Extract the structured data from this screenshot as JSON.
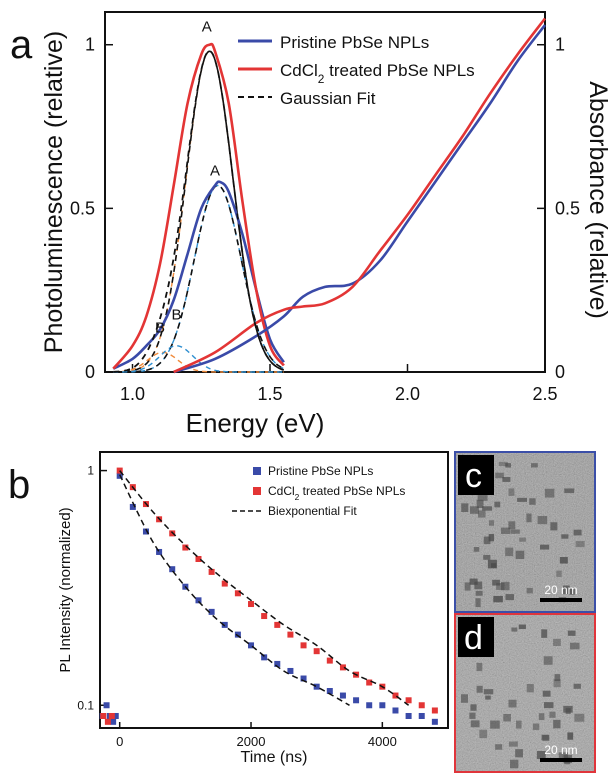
{
  "figure": {
    "panels": {
      "a": "a",
      "b": "b",
      "c": "c",
      "d": "d"
    },
    "tem_images": [
      {
        "panel": "c",
        "scale_bar": "20 nm",
        "border_color": "#3b4fa8"
      },
      {
        "panel": "d",
        "scale_bar": "20 nm",
        "border_color": "#e0353b"
      }
    ]
  },
  "colors": {
    "pristine": "#3a4aa8",
    "treated": "#e33535",
    "pristine_fit_components": "#2f8fd0",
    "treated_fit_components": "#f08a3a",
    "fit": "#111111"
  },
  "chart_data": [
    {
      "panel": "a",
      "type": "line",
      "xlabel": "Energy (eV)",
      "ylabel": "Photoluminescence (relative)",
      "y2label": "Absorbance (relative)",
      "xlim": [
        0.9,
        2.5
      ],
      "ylim": [
        0,
        1.1
      ],
      "xticks": [
        "1.0",
        "1.5",
        "2.0",
        "2.5"
      ],
      "yticks": [
        "0",
        "0.5",
        "1"
      ],
      "y2ticks": [
        "0",
        "0.5",
        "1"
      ],
      "legend_position": "top-right",
      "legend": [
        "Pristine PbSe NPLs",
        "CdCl2 treated PbSe NPLs",
        "Gaussian Fit"
      ],
      "peak_labels": [
        {
          "text": "A",
          "x": 1.27,
          "y": 1.04
        },
        {
          "text": "A",
          "x": 1.3,
          "y": 0.6
        },
        {
          "text": "B",
          "x": 1.1,
          "y": 0.12
        },
        {
          "text": "B",
          "x": 1.16,
          "y": 0.16
        }
      ],
      "series": [
        {
          "name": "Pristine PbSe NPLs",
          "kind": "photoluminescence",
          "x": [
            0.93,
            1.0,
            1.05,
            1.1,
            1.15,
            1.2,
            1.25,
            1.3,
            1.32,
            1.35,
            1.4,
            1.45,
            1.5,
            1.55
          ],
          "y": [
            0.01,
            0.04,
            0.08,
            0.13,
            0.22,
            0.36,
            0.5,
            0.57,
            0.58,
            0.55,
            0.42,
            0.25,
            0.1,
            0.03
          ]
        },
        {
          "name": "CdCl2 treated PbSe NPLs",
          "kind": "photoluminescence",
          "x": [
            0.93,
            1.0,
            1.05,
            1.1,
            1.15,
            1.2,
            1.25,
            1.28,
            1.3,
            1.35,
            1.4,
            1.45,
            1.5,
            1.55
          ],
          "y": [
            0.01,
            0.08,
            0.17,
            0.33,
            0.57,
            0.82,
            0.97,
            1.0,
            0.98,
            0.82,
            0.52,
            0.25,
            0.08,
            0.02
          ]
        },
        {
          "name": "Pristine PbSe NPLs",
          "kind": "absorbance",
          "x": [
            1.15,
            1.3,
            1.45,
            1.55,
            1.62,
            1.7,
            1.8,
            1.9,
            2.0,
            2.1,
            2.2,
            2.3,
            2.4,
            2.5
          ],
          "y": [
            0,
            0.04,
            0.11,
            0.17,
            0.23,
            0.26,
            0.27,
            0.34,
            0.46,
            0.58,
            0.7,
            0.82,
            0.95,
            1.06
          ]
        },
        {
          "name": "CdCl2 treated PbSe NPLs",
          "kind": "absorbance",
          "x": [
            1.15,
            1.3,
            1.45,
            1.55,
            1.62,
            1.7,
            1.8,
            1.9,
            2.0,
            2.1,
            2.2,
            2.3,
            2.4,
            2.5
          ],
          "y": [
            0,
            0.06,
            0.15,
            0.19,
            0.2,
            0.21,
            0.26,
            0.37,
            0.48,
            0.6,
            0.72,
            0.85,
            0.97,
            1.08
          ]
        }
      ],
      "fits": [
        {
          "of": "CdCl2 treated PbSe NPLs",
          "label": "A",
          "center": 1.28,
          "amplitude": 0.98,
          "sigma": 0.085
        },
        {
          "of": "CdCl2 treated PbSe NPLs",
          "label": "B",
          "center": 1.11,
          "amplitude": 0.06,
          "sigma": 0.055
        },
        {
          "of": "Pristine PbSe NPLs",
          "label": "A",
          "center": 1.31,
          "amplitude": 0.57,
          "sigma": 0.085
        },
        {
          "of": "Pristine PbSe NPLs",
          "label": "B",
          "center": 1.16,
          "amplitude": 0.08,
          "sigma": 0.06
        }
      ]
    },
    {
      "panel": "b",
      "type": "scatter",
      "xlabel": "Time (ns)",
      "ylabel": "PL Intensity (normalized)",
      "xlim": [
        -300,
        5000
      ],
      "ylim": [
        0.08,
        1.2
      ],
      "y_scale": "log",
      "xticks": [
        "0",
        "2000",
        "4000"
      ],
      "yticks": [
        "0.1",
        "1"
      ],
      "legend_position": "top-right",
      "legend": [
        "Pristine PbSe NPLs",
        "CdCl2 treated PbSe NPLs",
        "Biexponential Fit"
      ],
      "series": [
        {
          "name": "Pristine PbSe NPLs",
          "x": [
            -260,
            -200,
            -150,
            -100,
            -60,
            0,
            200,
            400,
            600,
            800,
            1000,
            1200,
            1400,
            1600,
            1800,
            2000,
            2200,
            2400,
            2600,
            2800,
            3000,
            3200,
            3400,
            3600,
            3800,
            4000,
            4200,
            4400,
            4600,
            4800
          ],
          "y": [
            0.09,
            0.1,
            0.09,
            0.085,
            0.09,
            0.95,
            0.7,
            0.55,
            0.45,
            0.38,
            0.32,
            0.28,
            0.25,
            0.22,
            0.2,
            0.18,
            0.16,
            0.15,
            0.14,
            0.13,
            0.12,
            0.115,
            0.11,
            0.105,
            0.1,
            0.1,
            0.095,
            0.09,
            0.09,
            0.085
          ]
        },
        {
          "name": "CdCl2 treated PbSe NPLs",
          "x": [
            -250,
            -180,
            -120,
            0,
            200,
            400,
            600,
            800,
            1000,
            1200,
            1400,
            1600,
            1800,
            2000,
            2200,
            2400,
            2600,
            2800,
            3000,
            3200,
            3400,
            3600,
            3800,
            4000,
            4200,
            4400,
            4600,
            4800
          ],
          "y": [
            0.09,
            0.085,
            0.09,
            1.0,
            0.85,
            0.72,
            0.62,
            0.54,
            0.47,
            0.42,
            0.37,
            0.33,
            0.3,
            0.27,
            0.24,
            0.22,
            0.2,
            0.18,
            0.17,
            0.155,
            0.145,
            0.135,
            0.125,
            0.12,
            0.11,
            0.105,
            0.1,
            0.095
          ]
        }
      ],
      "fits": [
        {
          "of": "Pristine PbSe NPLs",
          "x": [
            0,
            500,
            1000,
            1500,
            2000,
            2500,
            3000,
            3500
          ],
          "y": [
            0.96,
            0.5,
            0.32,
            0.23,
            0.18,
            0.14,
            0.12,
            0.1
          ]
        },
        {
          "of": "CdCl2 treated PbSe NPLs",
          "x": [
            0,
            500,
            1000,
            1500,
            2000,
            2500,
            3000,
            3500,
            4000,
            4400
          ],
          "y": [
            1.0,
            0.67,
            0.48,
            0.36,
            0.28,
            0.22,
            0.18,
            0.14,
            0.12,
            0.1
          ]
        }
      ]
    }
  ]
}
